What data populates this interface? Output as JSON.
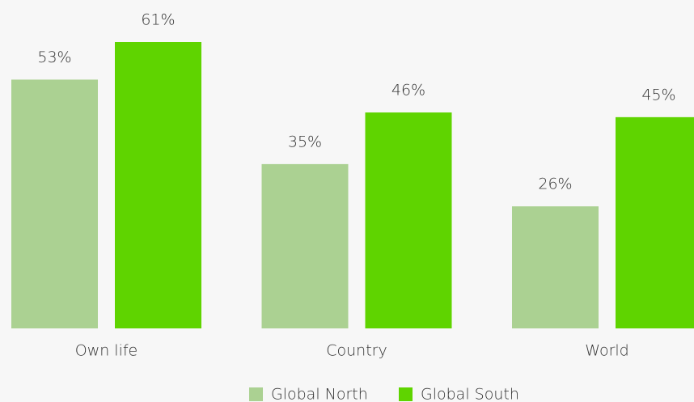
{
  "chart_data": {
    "type": "bar",
    "categories": [
      "Own life",
      "Country",
      "World"
    ],
    "series": [
      {
        "name": "Global North",
        "color": "#abd192",
        "values": [
          53,
          35,
          26
        ],
        "value_labels": [
          "53%",
          "35%",
          "26%"
        ]
      },
      {
        "name": "Global South",
        "color": "#5fd400",
        "values": [
          61,
          46,
          45
        ],
        "value_labels": [
          "61%",
          "46%",
          "45%"
        ]
      }
    ],
    "legend": "bottom"
  }
}
